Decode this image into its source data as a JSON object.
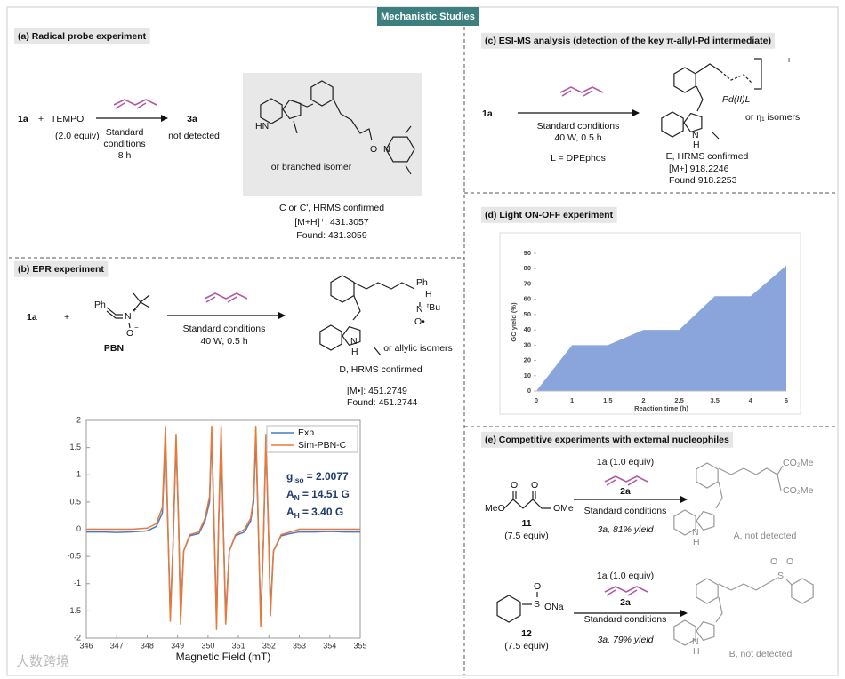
{
  "header": {
    "title": "Mechanistic Studies"
  },
  "panel_a": {
    "title": "(a) Radical probe experiment",
    "reactant": "1a",
    "plus": "+",
    "reagent": "TEMPO",
    "reagent_amount": "(2.0 equiv)",
    "conditions": [
      "Standard",
      "conditions",
      "8 h"
    ],
    "product": "3a",
    "result": "not detected",
    "atoms": [
      "HN",
      "O",
      "N"
    ],
    "note": "or branched isomer",
    "hrms": [
      "C or C', HRMS confirmed",
      "[M+H]⁺: 431.3057",
      "Found: 431.3059"
    ]
  },
  "panel_b": {
    "title": "(b) EPR experiment",
    "reactant": "1a",
    "plus": "+",
    "pbn_atoms": [
      "Ph",
      "N",
      "+",
      "O",
      "−"
    ],
    "pbn": "PBN",
    "conditions": [
      "Standard conditions",
      "40 W, 0.5 h"
    ],
    "product_atoms": [
      "Ph",
      "H",
      "N",
      "ᵗBu",
      "O•",
      "N",
      "H"
    ],
    "note": "or allylic isomers",
    "hrms": [
      "D, HRMS confirmed",
      "[M•]: 451.2749",
      "Found: 451.2744"
    ]
  },
  "panel_c": {
    "title": "(c) ESI-MS analysis (detection of the key π-allyl-Pd intermediate)",
    "reactant": "1a",
    "conditions": [
      "Standard conditions",
      "40 W, 0.5 h"
    ],
    "ligand": "L = DPEphos",
    "atoms": [
      "Pd(II)L",
      "+",
      "N",
      "H"
    ],
    "note": "or η₁ isomers",
    "hrms": [
      "E, HRMS confirmed",
      "[M+] 918.2246",
      "Found 918.2253"
    ]
  },
  "panel_d": {
    "title": "(d) Light ON-OFF experiment"
  },
  "panel_e": {
    "title": "(e) Competitive experiments with external nucleophiles",
    "reactions": [
      {
        "nucleophile_atoms": [
          "O",
          "O",
          "MeO",
          "OMe"
        ],
        "nucleophile": "11",
        "amount": "(7.5 equiv)",
        "reagents": [
          "1a (1.0 equiv)",
          "2a"
        ],
        "conditions": "Standard conditions",
        "outcome": "3a, 81% yield",
        "product_atoms": [
          "CO₂Me",
          "CO₂Me",
          "N",
          "H"
        ],
        "product": "A, not detected"
      },
      {
        "nucleophile_atoms": [
          "O",
          "S",
          "ONa"
        ],
        "nucleophile": "12",
        "amount": "(7.5 equiv)",
        "reagents": [
          "1a (1.0 equiv)",
          "2a"
        ],
        "conditions": "Standard conditions",
        "outcome": "3a, 79% yield",
        "product_atoms": [
          "O",
          "O",
          "S",
          "N",
          "H"
        ],
        "product": "B, not detected"
      }
    ]
  },
  "watermark": "大数跨境",
  "chart_data": [
    {
      "type": "line",
      "x_label": "Magnetic Field (mT)",
      "x": [
        346,
        346.5,
        347,
        347.5,
        348,
        348.3,
        348.5,
        348.6,
        348.68,
        348.76,
        348.85,
        348.95,
        349.03,
        349.1,
        349.2,
        349.4,
        349.7,
        349.9,
        350.05,
        350.12,
        350.2,
        350.28,
        350.35,
        350.43,
        350.5,
        350.58,
        350.7,
        350.9,
        351.2,
        351.4,
        351.5,
        351.57,
        351.65,
        351.73,
        351.82,
        351.9,
        351.98,
        352.05,
        352.15,
        352.4,
        352.7,
        353,
        353.5,
        354,
        354.5,
        355
      ],
      "series": [
        {
          "name": "Exp",
          "color": "#4a78c2",
          "values": [
            -0.05,
            -0.05,
            -0.06,
            -0.05,
            -0.03,
            0.05,
            0.3,
            1.7,
            0.05,
            -1.55,
            -0.3,
            1.6,
            0.15,
            -1.6,
            -0.4,
            -0.12,
            -0.08,
            0.15,
            0.5,
            1.75,
            0.05,
            -1.7,
            0.15,
            1.7,
            0.05,
            -1.6,
            -0.4,
            -0.12,
            -0.05,
            0.15,
            0.5,
            1.7,
            0.05,
            -1.65,
            -0.2,
            1.6,
            0.05,
            -1.45,
            -0.4,
            -0.12,
            -0.08,
            -0.05,
            -0.05,
            -0.04,
            -0.05,
            -0.05
          ]
        },
        {
          "name": "Sim-PBN-C",
          "color": "#e8793a",
          "values": [
            0,
            0,
            0,
            0,
            0.02,
            0.1,
            0.4,
            1.9,
            0.1,
            -1.7,
            -0.3,
            1.75,
            0.2,
            -1.75,
            -0.4,
            -0.1,
            -0.05,
            0.2,
            0.6,
            1.9,
            0.1,
            -1.85,
            0.2,
            1.9,
            0.1,
            -1.75,
            -0.4,
            -0.1,
            0,
            0.2,
            0.6,
            1.9,
            0.1,
            -1.8,
            -0.2,
            1.75,
            0.1,
            -1.6,
            -0.4,
            -0.1,
            -0.05,
            0,
            0,
            0,
            0,
            0
          ]
        }
      ],
      "xlim": [
        346,
        355
      ],
      "xticks": [
        346,
        347,
        348,
        349,
        350,
        351,
        352,
        353,
        354,
        355
      ],
      "ylim": [
        -2,
        2
      ],
      "yticks": [
        -2,
        -1.5,
        -1,
        -0.5,
        0,
        0.5,
        1,
        1.5,
        2
      ],
      "legend": "upper right",
      "annotations": [
        {
          "symbol": "g",
          "sub": "iso",
          "text": "= 2.0077"
        },
        {
          "symbol": "A",
          "sub": "N",
          "text": "= 14.51 G"
        },
        {
          "symbol": "A",
          "sub": "H",
          "text": "= 3.40 G"
        }
      ]
    },
    {
      "type": "area",
      "x_label": "Reaction time (h)",
      "y_label": "GC yield (%)",
      "categories": [
        "0",
        "1",
        "1.5",
        "2",
        "2.5",
        "3.5",
        "4",
        "6"
      ],
      "values": [
        0,
        30,
        30,
        40,
        40,
        62,
        62,
        82
      ],
      "color": "#8aa5dc",
      "ylim": [
        0,
        90
      ],
      "yticks": [
        0,
        10,
        20,
        30,
        40,
        50,
        60,
        70,
        80,
        90
      ]
    }
  ]
}
